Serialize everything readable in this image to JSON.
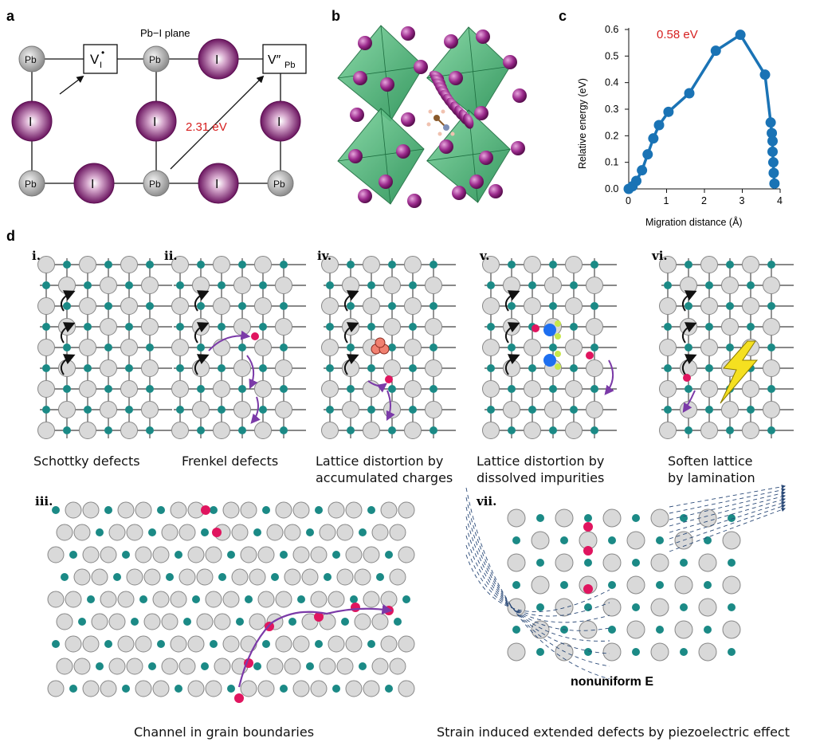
{
  "panel_a": {
    "label": "a",
    "title": "Pb−I plane",
    "energy": "2.31 eV",
    "pb": "Pb",
    "i": "I",
    "vac_i_main": "V",
    "vac_i_sub": "I",
    "vac_i_sup": "•",
    "vac_pb_main": "V″",
    "vac_pb_sub": "Pb"
  },
  "panel_b": {
    "label": "b"
  },
  "panel_c": {
    "label": "c",
    "annotation": "0.58 eV"
  },
  "panel_d": {
    "label": "d",
    "subpanels": [
      {
        "key": "i",
        "label": "i.",
        "caption": [
          "Schottky defects"
        ]
      },
      {
        "key": "ii",
        "label": "ii.",
        "caption": [
          "Frenkel defects"
        ]
      },
      {
        "key": "iv",
        "label": "iv.",
        "caption": [
          "Lattice distortion by",
          "accumulated charges"
        ]
      },
      {
        "key": "v",
        "label": "v.",
        "caption": [
          "Lattice distortion by",
          "dissolved impurities"
        ]
      },
      {
        "key": "vi",
        "label": "vi.",
        "caption": [
          "Soften lattice",
          "by lamination"
        ]
      },
      {
        "key": "iii",
        "label": "iii.",
        "caption": [
          "Channel in grain boundaries"
        ]
      },
      {
        "key": "vii",
        "label": "vii.",
        "caption": [
          "Strain induced extended defects by piezoelectric effect"
        ],
        "field_label": "nonuniform E"
      }
    ]
  },
  "colors": {
    "iodine": "#7a1f6b",
    "lead": "#a0a0a0",
    "line_blue": "#1a73b5",
    "red": "#d62020",
    "teal": "#1b8a86",
    "magenta": "#e0155f",
    "purple_arrow": "#7b3aa8",
    "green_octahedra": "#2eaa62"
  },
  "chart_data": {
    "type": "line",
    "title": "",
    "xlabel": "Migration distance (Å)",
    "ylabel": "Relative energy (eV)",
    "xlim": [
      0,
      4
    ],
    "ylim": [
      0,
      0.6
    ],
    "xticks": [
      0,
      1,
      2,
      3,
      4
    ],
    "yticks": [
      0.0,
      0.1,
      0.2,
      0.3,
      0.4,
      0.5,
      0.6
    ],
    "ytick_labels": [
      "0.0",
      "0.1",
      "0.2",
      "0.3",
      "0.4",
      "0.5",
      "0.6"
    ],
    "x": [
      0,
      0.1,
      0.2,
      0.35,
      0.5,
      0.65,
      0.8,
      1.05,
      1.6,
      2.3,
      2.95,
      3.6,
      3.75,
      3.78,
      3.8,
      3.8,
      3.82,
      3.83,
      3.85
    ],
    "y": [
      0,
      0.01,
      0.03,
      0.07,
      0.13,
      0.19,
      0.24,
      0.29,
      0.36,
      0.52,
      0.58,
      0.43,
      0.25,
      0.21,
      0.18,
      0.14,
      0.1,
      0.06,
      0.02
    ]
  }
}
